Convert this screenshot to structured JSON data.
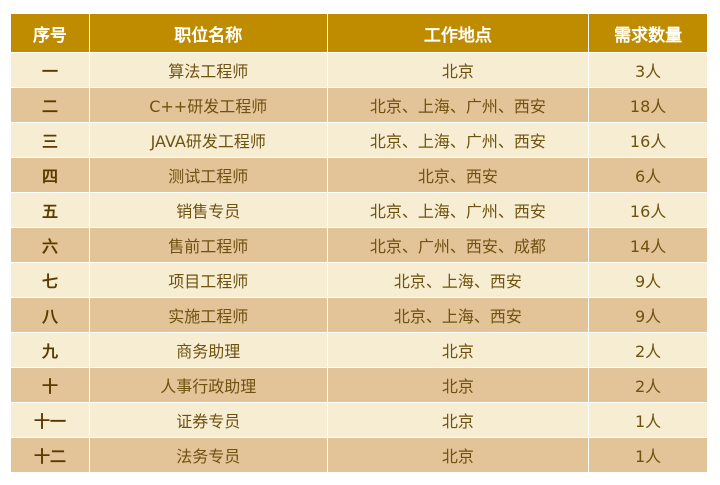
{
  "headers": [
    "序号",
    "职位名称",
    "工作地点",
    "需求数量"
  ],
  "rows": [
    [
      "一",
      "算法工程师",
      "北京",
      "3人"
    ],
    [
      "二",
      "C++研发工程师",
      "北京、上海、广州、西安",
      "18人"
    ],
    [
      "三",
      "JAVA研发工程师",
      "北京、上海、广州、西安",
      "16人"
    ],
    [
      "四",
      "测试工程师",
      "北京、西安",
      "6人"
    ],
    [
      "五",
      "销售专员",
      "北京、上海、广州、西安",
      "16人"
    ],
    [
      "六",
      "售前工程师",
      "北京、广州、西安、成都",
      "14人"
    ],
    [
      "七",
      "项目工程师",
      "北京、上海、西安",
      "9人"
    ],
    [
      "八",
      "实施工程师",
      "北京、上海、西安",
      "9人"
    ],
    [
      "九",
      "商务助理",
      "北京",
      "2人"
    ],
    [
      "十",
      "人事行政助理",
      "北京",
      "2人"
    ],
    [
      "十一",
      "证券专员",
      "北京",
      "1人"
    ],
    [
      "十二",
      "法务专员",
      "北京",
      "1人"
    ]
  ],
  "colors": {
    "header": "#BF8C00",
    "row_light": "#F7EDD2",
    "row_dark": "#E3C398"
  }
}
